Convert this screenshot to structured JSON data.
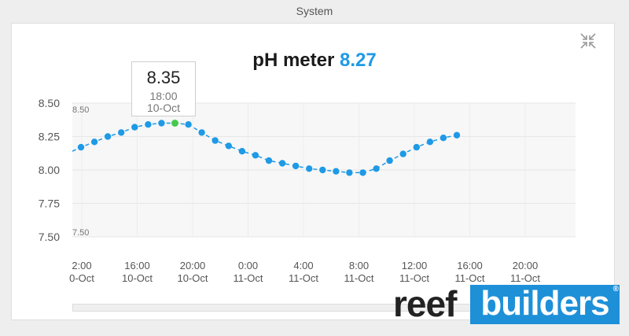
{
  "section": {
    "title": "System"
  },
  "header": {
    "title": "pH meter",
    "current_value": "8.27"
  },
  "tooltip": {
    "value": "8.35",
    "time": "18:00",
    "date": "10-Oct"
  },
  "brand": {
    "logo_left": "reef",
    "logo_right": "builders",
    "registered": "®"
  },
  "colors": {
    "series": "#1e9ae6",
    "highlight": "#47c94a",
    "logo_blue": "#1e90d8"
  },
  "icons": {
    "collapse": "compress-arrows-icon"
  },
  "chart_data": {
    "type": "line",
    "title": "pH meter",
    "ylim": [
      7.5,
      8.5
    ],
    "yticks": [
      "8.50",
      "8.25",
      "8.00",
      "7.75",
      "7.50"
    ],
    "minmax_labels": {
      "max": "8.50",
      "min": "7.50"
    },
    "x_ticks": [
      {
        "time": "2:00",
        "date": "0-Oct"
      },
      {
        "time": "16:00",
        "date": "10-Oct"
      },
      {
        "time": "20:00",
        "date": "10-Oct"
      },
      {
        "time": "0:00",
        "date": "11-Oct"
      },
      {
        "time": "4:00",
        "date": "11-Oct"
      },
      {
        "time": "8:00",
        "date": "11-Oct"
      },
      {
        "time": "12:00",
        "date": "11-Oct"
      },
      {
        "time": "16:00",
        "date": "11-Oct"
      },
      {
        "time": "20:00",
        "date": "11-Oct"
      }
    ],
    "grid": true,
    "series": [
      {
        "line_style": "dashed",
        "highlight_index": 7,
        "points": [
          8.17,
          8.21,
          8.25,
          8.28,
          8.32,
          8.34,
          8.35,
          8.35,
          8.34,
          8.28,
          8.22,
          8.18,
          8.14,
          8.11,
          8.07,
          8.05,
          8.03,
          8.01,
          8.0,
          7.99,
          7.98,
          7.98,
          8.01,
          8.07,
          8.12,
          8.17,
          8.21,
          8.24,
          8.26
        ]
      }
    ]
  }
}
